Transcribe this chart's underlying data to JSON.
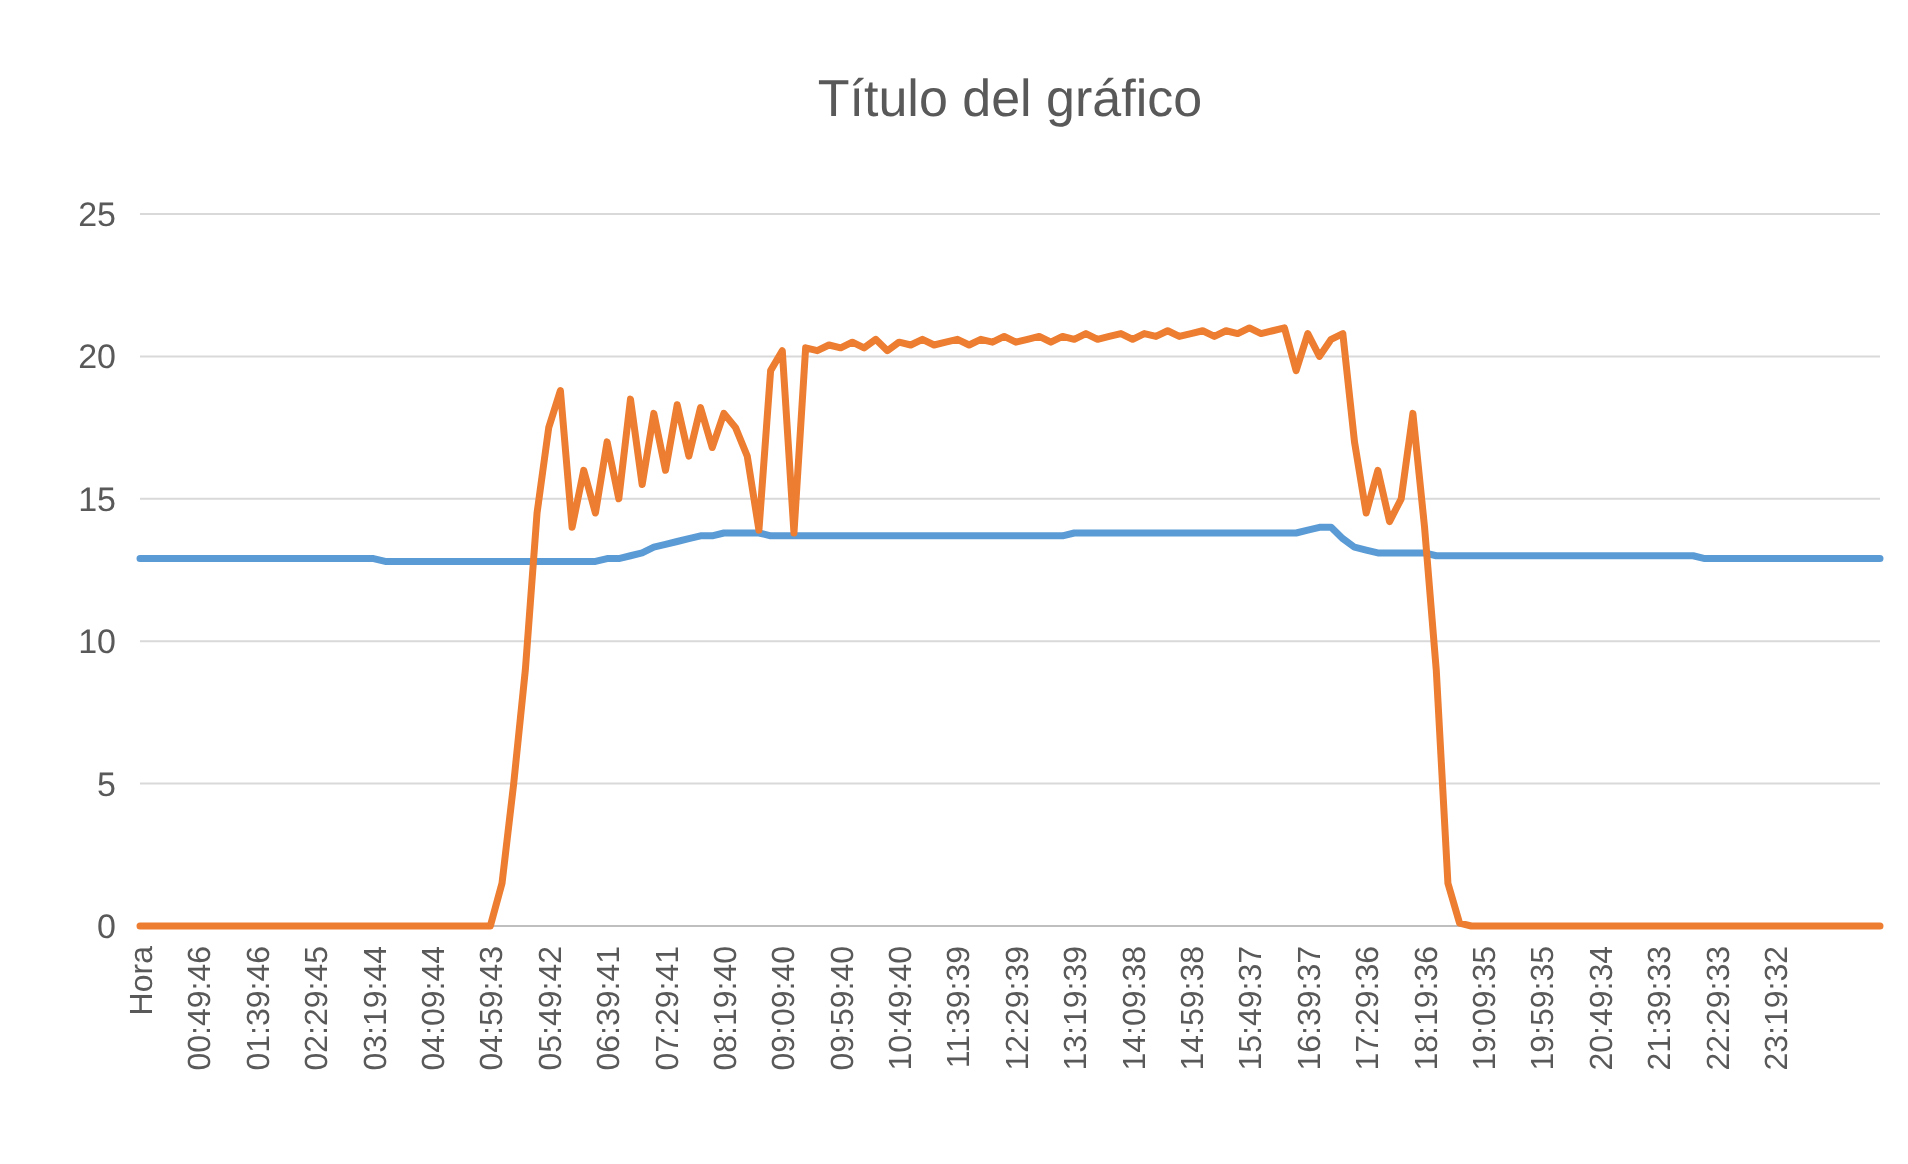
{
  "chart_data": {
    "type": "line",
    "title": "Título del gráfico",
    "categories": [
      "Hora",
      null,
      null,
      null,
      null,
      "00:49:46",
      null,
      null,
      null,
      null,
      "01:39:46",
      null,
      null,
      null,
      null,
      "02:29:45",
      null,
      null,
      null,
      null,
      "03:19:44",
      null,
      null,
      null,
      null,
      "04:09:44",
      null,
      null,
      null,
      null,
      "04:59:43",
      null,
      null,
      null,
      null,
      "05:49:42",
      null,
      null,
      null,
      null,
      "06:39:41",
      null,
      null,
      null,
      null,
      "07:29:41",
      null,
      null,
      null,
      null,
      "08:19:40",
      null,
      null,
      null,
      null,
      "09:09:40",
      null,
      null,
      null,
      null,
      "09:59:40",
      null,
      null,
      null,
      null,
      "10:49:40",
      null,
      null,
      null,
      null,
      "11:39:39",
      null,
      null,
      null,
      null,
      "12:29:39",
      null,
      null,
      null,
      null,
      "13:19:39",
      null,
      null,
      null,
      null,
      "14:09:38",
      null,
      null,
      null,
      null,
      "14:59:38",
      null,
      null,
      null,
      null,
      "15:49:37",
      null,
      null,
      null,
      null,
      "16:39:37",
      null,
      null,
      null,
      null,
      "17:29:36",
      null,
      null,
      null,
      null,
      "18:19:36",
      null,
      null,
      null,
      null,
      "19:09:35",
      null,
      null,
      null,
      null,
      "19:59:35",
      null,
      null,
      null,
      null,
      "20:49:34",
      null,
      null,
      null,
      null,
      "21:39:33",
      null,
      null,
      null,
      null,
      "22:29:33",
      null,
      null,
      null,
      null,
      "23:19:32",
      null,
      null,
      null,
      null,
      null,
      null,
      null,
      null,
      null
    ],
    "series": [
      {
        "color": "#5b9bd5",
        "values": [
          12.9,
          12.9,
          12.9,
          12.9,
          12.9,
          12.9,
          12.9,
          12.9,
          12.9,
          12.9,
          12.9,
          12.9,
          12.9,
          12.9,
          12.9,
          12.9,
          12.9,
          12.9,
          12.9,
          12.9,
          12.9,
          12.8,
          12.8,
          12.8,
          12.8,
          12.8,
          12.8,
          12.8,
          12.8,
          12.8,
          12.8,
          12.8,
          12.8,
          12.8,
          12.8,
          12.8,
          12.8,
          12.8,
          12.8,
          12.8,
          12.9,
          12.9,
          13,
          13.1,
          13.3,
          13.4,
          13.5,
          13.6,
          13.7,
          13.7,
          13.8,
          13.8,
          13.8,
          13.8,
          13.7,
          13.7,
          13.7,
          13.7,
          13.7,
          13.7,
          13.7,
          13.7,
          13.7,
          13.7,
          13.7,
          13.7,
          13.7,
          13.7,
          13.7,
          13.7,
          13.7,
          13.7,
          13.7,
          13.7,
          13.7,
          13.7,
          13.7,
          13.7,
          13.7,
          13.7,
          13.8,
          13.8,
          13.8,
          13.8,
          13.8,
          13.8,
          13.8,
          13.8,
          13.8,
          13.8,
          13.8,
          13.8,
          13.8,
          13.8,
          13.8,
          13.8,
          13.8,
          13.8,
          13.8,
          13.8,
          13.9,
          14,
          14,
          13.6,
          13.3,
          13.2,
          13.1,
          13.1,
          13.1,
          13.1,
          13.1,
          13,
          13,
          13,
          13,
          13,
          13,
          13,
          13,
          13,
          13,
          13,
          13,
          13,
          13,
          13,
          13,
          13,
          13,
          13,
          13,
          13,
          13,
          13,
          12.9,
          12.9,
          12.9,
          12.9,
          12.9,
          12.9,
          12.9,
          12.9,
          12.9,
          12.9,
          12.9,
          12.9,
          12.9,
          12.9,
          12.9,
          12.9
        ]
      },
      {
        "color": "#ed7d31",
        "values": [
          0,
          0,
          0,
          0,
          0,
          0,
          0,
          0,
          0,
          0,
          0,
          0,
          0,
          0,
          0,
          0,
          0,
          0,
          0,
          0,
          0,
          0,
          0,
          0,
          0,
          0,
          0,
          0,
          0,
          0,
          0,
          1.5,
          5,
          9,
          14.5,
          17.5,
          18.8,
          14,
          16,
          14.5,
          17,
          15,
          18.5,
          15.5,
          18,
          16,
          18.3,
          16.5,
          18.2,
          16.8,
          18,
          17.5,
          16.5,
          13.9,
          19.5,
          20.2,
          13.8,
          20.3,
          20.2,
          20.4,
          20.3,
          20.5,
          20.3,
          20.6,
          20.2,
          20.5,
          20.4,
          20.6,
          20.4,
          20.5,
          20.6,
          20.4,
          20.6,
          20.5,
          20.7,
          20.5,
          20.6,
          20.7,
          20.5,
          20.7,
          20.6,
          20.8,
          20.6,
          20.7,
          20.8,
          20.6,
          20.8,
          20.7,
          20.9,
          20.7,
          20.8,
          20.9,
          20.7,
          20.9,
          20.8,
          21,
          20.8,
          20.9,
          21,
          19.5,
          20.8,
          20,
          20.6,
          20.8,
          17,
          14.5,
          16,
          14.2,
          15,
          18,
          14,
          9,
          1.5,
          0.1,
          0,
          0,
          0,
          0,
          0,
          0,
          0,
          0,
          0,
          0,
          0,
          0,
          0,
          0,
          0,
          0,
          0,
          0,
          0,
          0,
          0,
          0,
          0,
          0,
          0,
          0,
          0,
          0,
          0,
          0,
          0,
          0,
          0,
          0,
          0,
          0
        ]
      }
    ],
    "ylim": [
      0,
      25
    ],
    "yticks": [
      0,
      5,
      10,
      15,
      20,
      25
    ],
    "grid": "y",
    "line_style": "solid",
    "marker": "none"
  }
}
